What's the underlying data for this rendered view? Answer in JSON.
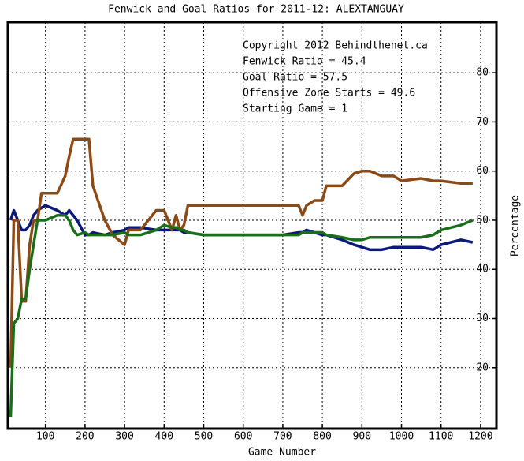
{
  "chart_data": {
    "type": "line",
    "title": "Fenwick and Goal Ratios for 2011-12: ALEXTANGUAY",
    "x_label": "Game Number",
    "y_label": "Percentage",
    "annotations": [
      {
        "text": "Copyright 2012 Behindthenet.ca",
        "color": "#000000"
      },
      {
        "text": "Starting Game = 1",
        "color": "#000000"
      }
    ],
    "x": [
      12,
      20,
      30,
      40,
      50,
      60,
      70,
      80,
      90,
      100,
      130,
      150,
      160,
      170,
      180,
      200,
      210,
      220,
      250,
      270,
      300,
      310,
      340,
      380,
      400,
      420,
      430,
      440,
      450,
      460,
      500,
      700,
      740,
      750,
      760,
      780,
      800,
      810,
      850,
      880,
      900,
      920,
      950,
      980,
      1000,
      1050,
      1080,
      1100,
      1150,
      1180
    ],
    "series": [
      {
        "name": "Fenwick Ratio = 45.4",
        "color": "#0b1a7a",
        "values": [
          50,
          52,
          50,
          48,
          48,
          49,
          51,
          52,
          52.5,
          53,
          52,
          51,
          52,
          51,
          50,
          47,
          47,
          47.5,
          47,
          47.5,
          48,
          48.5,
          48.5,
          48,
          48,
          48,
          48,
          48,
          47.5,
          47.5,
          47,
          47,
          47.5,
          47.5,
          48,
          47.5,
          47,
          47,
          46,
          45,
          44.5,
          44,
          44,
          44.5,
          44.5,
          44.5,
          44,
          45,
          46,
          45.5
        ]
      },
      {
        "name": "Goal Ratio = 57.5",
        "color": "#8b4a16",
        "values": [
          20,
          50,
          50,
          33.5,
          33.5,
          45,
          50,
          50,
          55.5,
          55.5,
          55.5,
          59,
          63,
          66.5,
          66.5,
          66.5,
          66.5,
          57,
          50,
          47,
          45,
          48,
          48,
          52,
          52,
          48,
          51,
          48,
          49,
          53,
          53,
          53,
          53,
          51,
          53,
          54,
          54,
          57,
          57,
          59.5,
          60,
          60,
          59,
          59,
          58,
          58.5,
          58,
          58,
          57.5,
          57.5
        ]
      },
      {
        "name": "Offensive Zone Starts = 49.6",
        "color": "#1a6e1a",
        "values": [
          10,
          29,
          30,
          34,
          34,
          40,
          45,
          50,
          50,
          50,
          51,
          51,
          50,
          48,
          47,
          47.5,
          47,
          47,
          47,
          47,
          47.5,
          47,
          47,
          48,
          49,
          48.5,
          48.5,
          48,
          48,
          47.5,
          47,
          47,
          47,
          47.5,
          47.5,
          47.5,
          47.5,
          47,
          46.5,
          46,
          46,
          46.5,
          46.5,
          46.5,
          46.5,
          46.5,
          47,
          48,
          49,
          50
        ]
      }
    ],
    "xlim": [
      5,
      1240
    ],
    "ylim": [
      7.6,
      90.3
    ],
    "xticks": [
      100,
      200,
      300,
      400,
      500,
      600,
      700,
      800,
      900,
      1000,
      1100,
      1200
    ],
    "yticks": [
      20,
      30,
      40,
      50,
      60,
      70,
      80
    ],
    "grid": true
  }
}
